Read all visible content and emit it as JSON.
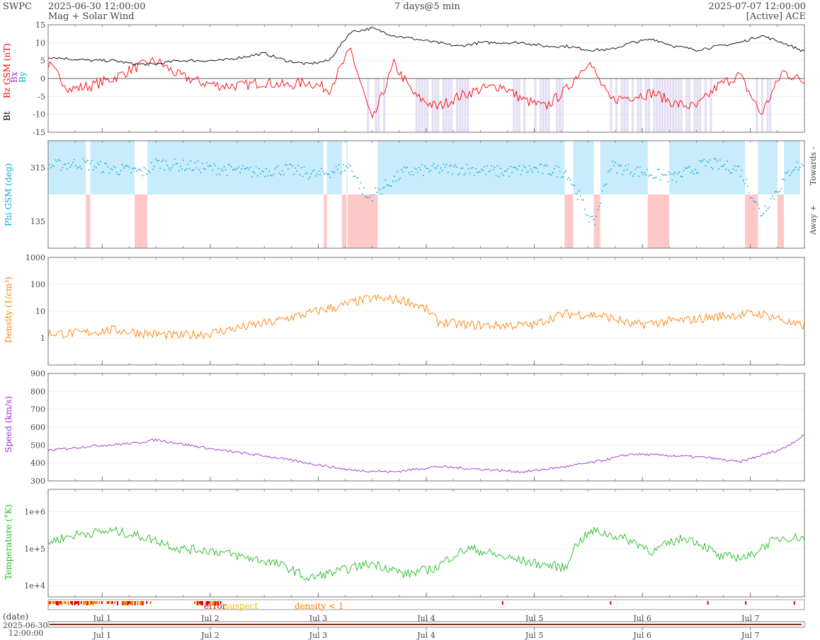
{
  "header": {
    "org": "SWPC",
    "start_time": "2025-06-30 12:00:00",
    "subtitle": "Mag + Solar Wind",
    "span": "7 days@5 min",
    "end_time": "2025-07-07 12:00:00",
    "source": "[Active] ACE"
  },
  "flags": {
    "error_label": "error",
    "suspect_label": "suspect",
    "density_label": "density < 1",
    "colors": {
      "error": "#dd0000",
      "suspect": "#e8c000",
      "density": "#ff7f00"
    }
  },
  "footer": {
    "date_label": "(date)",
    "date_value": "2025-06-30",
    "time_value": "12:00:00"
  },
  "colors": {
    "bt": "#000000",
    "bz": "#ff0000",
    "bx": "#9b30d0",
    "by": "#00aadd",
    "phi": "#00aadd",
    "phi_towards_fill": "#c8ecfb",
    "phi_away_fill": "#ffc8c8",
    "density": "#ff7f00",
    "speed": "#9b30d0",
    "temperature": "#22bb22",
    "bz_south_fill": "#dcd4f0"
  },
  "chart_data": [
    {
      "type": "line",
      "title": "Mag",
      "ylabel_parts": [
        "Bt",
        "Bz GSM (nT)",
        "Bx",
        "By"
      ],
      "ylim": [
        -15,
        15
      ],
      "yticks": [
        15,
        10,
        5,
        0,
        -5,
        -10,
        -15
      ],
      "x_start": "2025-06-30 12:00:00",
      "x_end": "2025-07-07 12:00:00",
      "x_tick_labels": [
        "Jul 1",
        "Jul 2",
        "Jul 3",
        "Jul 4",
        "Jul 5",
        "Jul 6",
        "Jul 7"
      ],
      "series": [
        {
          "name": "Bt",
          "x_days": [
            0,
            0.2,
            0.4,
            0.6,
            0.8,
            1.0,
            1.2,
            1.4,
            1.6,
            1.8,
            2.0,
            2.2,
            2.4,
            2.6,
            2.8,
            3.0,
            3.2,
            3.4,
            3.6,
            3.8,
            4.0,
            4.2,
            4.4,
            4.6,
            4.8,
            5.0,
            5.2,
            5.4,
            5.6,
            5.8,
            6.0,
            6.2,
            6.4,
            6.6,
            6.8,
            7.0
          ],
          "values": [
            6,
            5.5,
            5,
            5,
            4,
            4,
            5,
            5,
            5,
            6,
            7,
            5,
            4,
            5,
            13,
            14,
            12,
            11,
            10,
            9,
            10,
            10,
            10,
            9,
            9,
            8,
            8,
            10,
            11,
            9,
            8,
            9,
            10,
            12,
            10,
            7.5
          ]
        },
        {
          "name": "Bz GSM",
          "x_days": [
            0,
            0.2,
            0.4,
            0.6,
            0.8,
            1.0,
            1.2,
            1.4,
            1.6,
            1.8,
            2.0,
            2.2,
            2.4,
            2.6,
            2.8,
            3.0,
            3.2,
            3.4,
            3.6,
            3.8,
            4.0,
            4.2,
            4.4,
            4.6,
            4.8,
            5.0,
            5.2,
            5.4,
            5.6,
            5.8,
            6.0,
            6.2,
            6.4,
            6.6,
            6.8,
            7.0
          ],
          "values": [
            4,
            -3,
            -2,
            0,
            3,
            5,
            1,
            -1,
            -2,
            -2,
            -1,
            -2,
            -1,
            -3,
            8,
            -12,
            4,
            -5,
            -8,
            -5,
            -3,
            -2,
            -6,
            -8,
            -3,
            5,
            -6,
            -5,
            -4,
            -7,
            -8,
            -2,
            1,
            -10,
            2,
            -1
          ]
        }
      ]
    },
    {
      "type": "scatter",
      "ylabel": "Phi GSM (deg)",
      "right_labels": [
        "Towards -",
        "Away +"
      ],
      "ylim": [
        45,
        405
      ],
      "yticks": [
        315,
        135
      ],
      "series": [
        {
          "name": "Phi GSM",
          "x_days": [
            0,
            0.3,
            0.6,
            0.9,
            1.0,
            1.3,
            1.6,
            1.9,
            2.2,
            2.5,
            2.8,
            2.95,
            3.3,
            3.6,
            3.9,
            4.2,
            4.5,
            4.8,
            5.05,
            5.2,
            5.5,
            5.8,
            6.1,
            6.4,
            6.6,
            6.9,
            7.0
          ],
          "values": [
            320,
            330,
            310,
            300,
            330,
            320,
            310,
            300,
            310,
            290,
            320,
            210,
            300,
            310,
            310,
            300,
            310,
            300,
            120,
            320,
            300,
            280,
            330,
            310,
            160,
            320,
            320
          ]
        }
      ]
    },
    {
      "type": "line",
      "ylabel": "Density (1/cm³)",
      "scale": "log",
      "ylim": [
        0.1,
        1000
      ],
      "yticks": [
        1000,
        100,
        10,
        1
      ],
      "series": [
        {
          "name": "Density",
          "x_days": [
            0,
            0.3,
            0.6,
            0.9,
            1.2,
            1.5,
            1.8,
            2.1,
            2.4,
            2.7,
            3.0,
            3.3,
            3.6,
            3.9,
            4.2,
            4.5,
            4.8,
            5.1,
            5.4,
            5.7,
            6.0,
            6.3,
            6.6,
            6.9,
            7.0
          ],
          "values": [
            1.5,
            1.5,
            2,
            1.5,
            1.2,
            1.5,
            2.5,
            4,
            8,
            15,
            30,
            25,
            4,
            3,
            3,
            3,
            8,
            7,
            3,
            4,
            5,
            7,
            8,
            3,
            3
          ]
        }
      ]
    },
    {
      "type": "line",
      "ylabel": "Speed (km/s)",
      "ylim": [
        300,
        900
      ],
      "yticks": [
        900,
        800,
        700,
        600,
        500,
        400,
        300
      ],
      "series": [
        {
          "name": "Speed",
          "x_days": [
            0,
            0.4,
            0.8,
            1.0,
            1.3,
            1.6,
            2.0,
            2.4,
            2.8,
            3.2,
            3.6,
            4.0,
            4.4,
            4.8,
            5.1,
            5.4,
            5.8,
            6.1,
            6.4,
            6.8,
            7.0
          ],
          "values": [
            470,
            495,
            510,
            530,
            500,
            470,
            440,
            400,
            360,
            350,
            380,
            365,
            350,
            380,
            410,
            450,
            440,
            430,
            405,
            480,
            555
          ]
        }
      ]
    },
    {
      "type": "line",
      "ylabel": "Temperature (°K)",
      "scale": "log",
      "ylim": [
        5000,
        4000000
      ],
      "ytick_labels": [
        "1e+6",
        "1e+5",
        "1e+4"
      ],
      "series": [
        {
          "name": "Temperature",
          "x_days": [
            0,
            0.3,
            0.6,
            0.9,
            1.2,
            1.5,
            1.8,
            2.1,
            2.4,
            2.7,
            3.0,
            3.3,
            3.6,
            3.9,
            4.2,
            4.5,
            4.8,
            5.05,
            5.3,
            5.6,
            5.9,
            6.2,
            6.5,
            6.8,
            7.0
          ],
          "values": [
            150000,
            250000,
            300000,
            200000,
            100000,
            90000,
            60000,
            40000,
            15000,
            25000,
            40000,
            20000,
            30000,
            100000,
            60000,
            40000,
            30000,
            300000,
            200000,
            80000,
            200000,
            60000,
            60000,
            200000,
            200000
          ]
        }
      ]
    }
  ]
}
